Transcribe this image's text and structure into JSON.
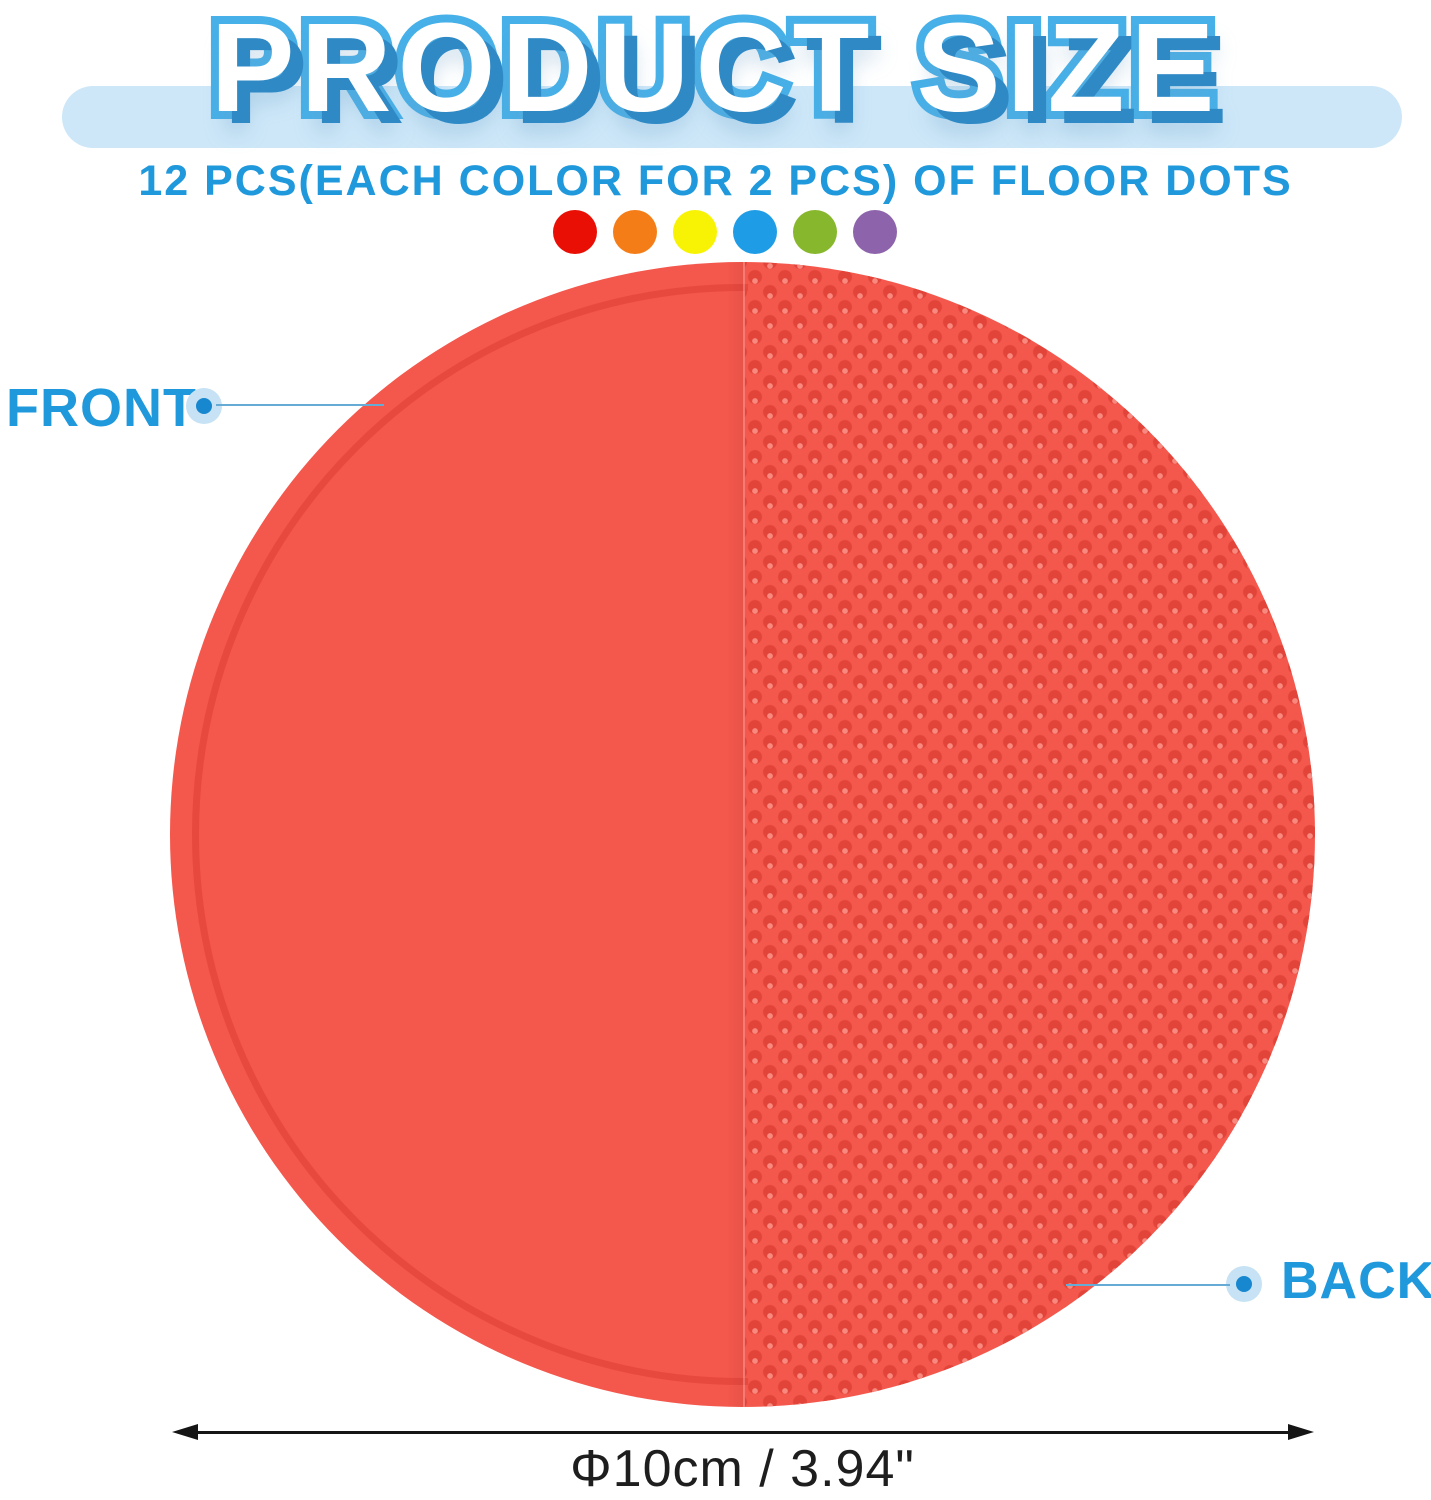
{
  "header": {
    "title": "PRODUCT SIZE",
    "subtitle": "12 PCS(EACH COLOR FOR 2 PCS) OF FLOOR DOTS"
  },
  "colors": {
    "banner": "#cde7f8",
    "title_fill": "#ffffff",
    "title_stroke": "#47b0e8",
    "title_shadow": "#2f89c5",
    "label_blue": "#1f98dc",
    "disc": "#f4574c",
    "disc_texture_dot": "#e2443a",
    "dimension_text": "#1e1e1e"
  },
  "swatches": [
    {
      "name": "red",
      "hex": "#e90f05"
    },
    {
      "name": "orange",
      "hex": "#f57d17"
    },
    {
      "name": "yellow",
      "hex": "#f8f304"
    },
    {
      "name": "blue",
      "hex": "#1e9ce5"
    },
    {
      "name": "green",
      "hex": "#86b72d"
    },
    {
      "name": "purple",
      "hex": "#8d64ab"
    }
  ],
  "annotations": {
    "front_label": "FRONT",
    "back_label": "BACK"
  },
  "dimension": {
    "label": "Φ10cm / 3.94\""
  }
}
